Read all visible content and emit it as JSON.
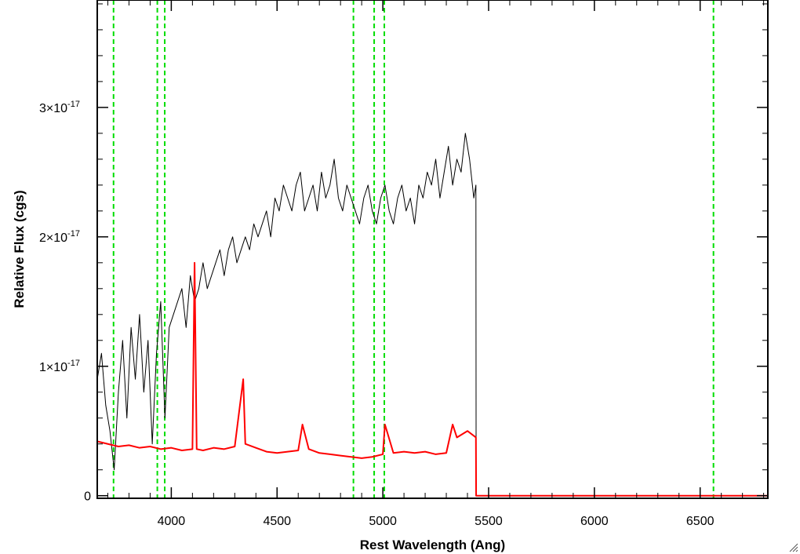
{
  "chart_data": {
    "type": "line",
    "xlabel": "Rest Wavelength (Ang)",
    "ylabel": "Relative Flux (cgs)",
    "xlim": [
      3650,
      6820
    ],
    "ylim": [
      -2e-19,
      3.83e-17
    ],
    "x_ticks": [
      {
        "value": 4000,
        "label": "4000"
      },
      {
        "value": 4500,
        "label": "4500"
      },
      {
        "value": 5000,
        "label": "5000"
      },
      {
        "value": 5500,
        "label": "5500"
      },
      {
        "value": 6000,
        "label": "6000"
      },
      {
        "value": 6500,
        "label": "6500"
      }
    ],
    "y_ticks": [
      {
        "value": 0,
        "mantissa": "0",
        "exponent": ""
      },
      {
        "value": 1e-17,
        "mantissa": "1×10",
        "exponent": "-17"
      },
      {
        "value": 2e-17,
        "mantissa": "2×10",
        "exponent": "-17"
      },
      {
        "value": 3e-17,
        "mantissa": "3×10",
        "exponent": "-17"
      }
    ],
    "line_markers": [
      3727,
      3934,
      3969,
      4861,
      4959,
      5007,
      6563
    ],
    "series": [
      {
        "color": "#000000",
        "x": [
          3650,
          3670,
          3690,
          3710,
          3730,
          3750,
          3770,
          3790,
          3810,
          3830,
          3850,
          3870,
          3890,
          3910,
          3930,
          3950,
          3970,
          3990,
          4010,
          4030,
          4050,
          4070,
          4090,
          4110,
          4130,
          4150,
          4170,
          4190,
          4210,
          4230,
          4250,
          4270,
          4290,
          4310,
          4330,
          4350,
          4370,
          4390,
          4410,
          4430,
          4450,
          4470,
          4490,
          4510,
          4530,
          4550,
          4570,
          4590,
          4610,
          4630,
          4650,
          4670,
          4690,
          4710,
          4730,
          4750,
          4770,
          4790,
          4810,
          4830,
          4850,
          4870,
          4890,
          4910,
          4930,
          4950,
          4970,
          4990,
          5010,
          5030,
          5050,
          5070,
          5090,
          5110,
          5130,
          5150,
          5170,
          5190,
          5210,
          5230,
          5250,
          5270,
          5290,
          5310,
          5330,
          5350,
          5370,
          5390,
          5410,
          5430,
          5440,
          5441,
          5500,
          6000,
          6500,
          6820
        ],
        "y": [
          9e-18,
          1.1e-17,
          7e-18,
          5e-18,
          2e-18,
          8e-18,
          1.2e-17,
          6e-18,
          1.3e-17,
          9e-18,
          1.4e-17,
          8e-18,
          1.2e-17,
          4e-18,
          1.1e-17,
          1.5e-17,
          6e-18,
          1.3e-17,
          1.4e-17,
          1.5e-17,
          1.6e-17,
          1.3e-17,
          1.7e-17,
          1.5e-17,
          1.6e-17,
          1.8e-17,
          1.6e-17,
          1.7e-17,
          1.8e-17,
          1.9e-17,
          1.7e-17,
          1.9e-17,
          2e-17,
          1.8e-17,
          1.9e-17,
          2e-17,
          1.9e-17,
          2.1e-17,
          2e-17,
          2.1e-17,
          2.2e-17,
          2e-17,
          2.3e-17,
          2.2e-17,
          2.4e-17,
          2.3e-17,
          2.2e-17,
          2.4e-17,
          2.5e-17,
          2.2e-17,
          2.3e-17,
          2.4e-17,
          2.2e-17,
          2.5e-17,
          2.3e-17,
          2.4e-17,
          2.6e-17,
          2.3e-17,
          2.2e-17,
          2.4e-17,
          2.3e-17,
          2.2e-17,
          2.1e-17,
          2.3e-17,
          2.4e-17,
          2.2e-17,
          2.1e-17,
          2.3e-17,
          2.4e-17,
          2.2e-17,
          2.1e-17,
          2.3e-17,
          2.4e-17,
          2.2e-17,
          2.3e-17,
          2.1e-17,
          2.4e-17,
          2.3e-17,
          2.5e-17,
          2.4e-17,
          2.6e-17,
          2.3e-17,
          2.5e-17,
          2.7e-17,
          2.4e-17,
          2.6e-17,
          2.5e-17,
          2.8e-17,
          2.6e-17,
          2.3e-17,
          2.4e-17,
          0.0,
          0.0,
          0.0,
          0.0,
          0.0
        ]
      },
      {
        "color": "#ff0000",
        "x": [
          3650,
          3700,
          3750,
          3800,
          3850,
          3900,
          3950,
          4000,
          4050,
          4100,
          4110,
          4120,
          4150,
          4200,
          4250,
          4300,
          4340,
          4350,
          4400,
          4450,
          4500,
          4550,
          4600,
          4620,
          4650,
          4700,
          4750,
          4800,
          4850,
          4900,
          4950,
          5000,
          5010,
          5050,
          5100,
          5150,
          5200,
          5250,
          5300,
          5330,
          5350,
          5400,
          5440,
          5441,
          5500,
          6000,
          6500,
          6820
        ],
        "y": [
          4.2e-18,
          4e-18,
          3.8e-18,
          3.9e-18,
          3.7e-18,
          3.8e-18,
          3.6e-18,
          3.7e-18,
          3.5e-18,
          3.6e-18,
          1.8e-17,
          3.6e-18,
          3.5e-18,
          3.7e-18,
          3.6e-18,
          3.8e-18,
          9e-18,
          4e-18,
          3.7e-18,
          3.4e-18,
          3.3e-18,
          3.4e-18,
          3.5e-18,
          5.5e-18,
          3.6e-18,
          3.3e-18,
          3.2e-18,
          3.1e-18,
          3e-18,
          2.9e-18,
          3e-18,
          3.2e-18,
          5.5e-18,
          3.3e-18,
          3.4e-18,
          3.3e-18,
          3.4e-18,
          3.2e-18,
          3.3e-18,
          5.5e-18,
          4.5e-18,
          5e-18,
          4.5e-18,
          0.0,
          0.0,
          0.0,
          0.0,
          0.0
        ]
      }
    ],
    "marker_color": "#00dd00",
    "grid": false,
    "legend": "none"
  }
}
